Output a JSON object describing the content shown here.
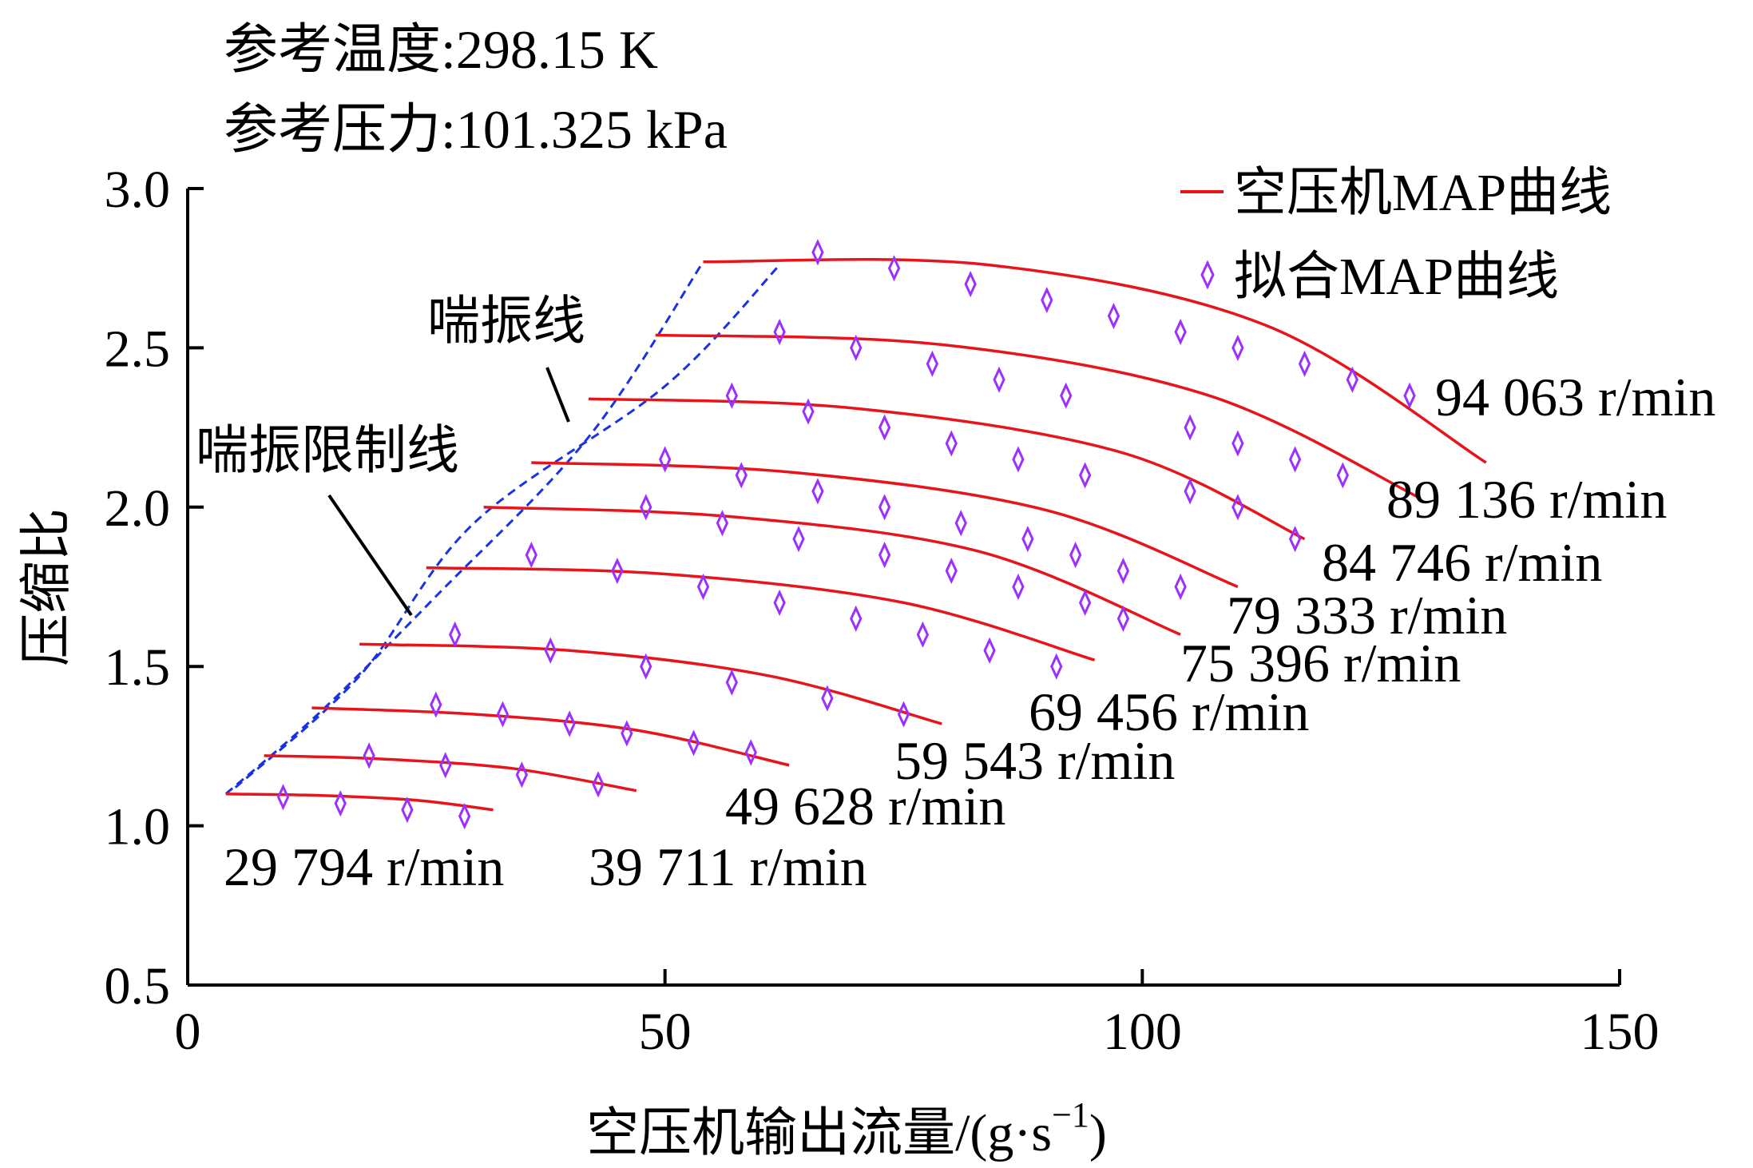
{
  "notes": {
    "ref_temp": "参考温度:298.15 K",
    "ref_pressure": "参考压力:101.325 kPa"
  },
  "legend": {
    "map_curve": "空压机MAP曲线",
    "fit_curve": "拟合MAP曲线"
  },
  "annotations": {
    "surge_line": "喘振线",
    "surge_limit_line": "喘振限制线"
  },
  "colors": {
    "map_curve": "#e8141b",
    "fit_marker": "#9b30ff",
    "surge": "#1a33e0",
    "axis": "#000000"
  },
  "chart_data": {
    "type": "line",
    "xlabel": "空压机输出流量/(g·s",
    "xlabel_sup": "−1",
    "xlabel_end": ")",
    "ylabel": "压缩比",
    "xlim": [
      0,
      150
    ],
    "ylim": [
      0.5,
      3.0
    ],
    "x_ticks": [
      0,
      50,
      100,
      150
    ],
    "x_tick_labels": [
      "0",
      "50",
      "100",
      "150"
    ],
    "y_ticks": [
      0.5,
      1.0,
      1.5,
      2.0,
      2.5,
      3.0
    ],
    "y_tick_labels": [
      "0.5",
      "1.0",
      "1.5",
      "2.0",
      "2.5",
      "3.0"
    ],
    "grid": false,
    "legend_position": "top-right",
    "series": [
      {
        "label": "29 794 r/min",
        "map_curve": [
          [
            4,
            1.1
          ],
          [
            14,
            1.095
          ],
          [
            24,
            1.08
          ],
          [
            32,
            1.05
          ]
        ],
        "fit_points": [
          [
            10,
            1.09
          ],
          [
            16,
            1.07
          ],
          [
            23,
            1.05
          ],
          [
            29,
            1.03
          ]
        ]
      },
      {
        "label": "39 711 r/min",
        "map_curve": [
          [
            8,
            1.22
          ],
          [
            20,
            1.21
          ],
          [
            34,
            1.18
          ],
          [
            47,
            1.11
          ]
        ],
        "fit_points": [
          [
            19,
            1.22
          ],
          [
            27,
            1.19
          ],
          [
            35,
            1.16
          ],
          [
            43,
            1.13
          ]
        ]
      },
      {
        "label": "49 628 r/min",
        "map_curve": [
          [
            13,
            1.37
          ],
          [
            30,
            1.35
          ],
          [
            47,
            1.3
          ],
          [
            63,
            1.19
          ]
        ],
        "fit_points": [
          [
            26,
            1.38
          ],
          [
            33,
            1.35
          ],
          [
            40,
            1.32
          ],
          [
            46,
            1.29
          ],
          [
            53,
            1.26
          ],
          [
            59,
            1.23
          ]
        ]
      },
      {
        "label": "59 543 r/min",
        "map_curve": [
          [
            18,
            1.57
          ],
          [
            40,
            1.55
          ],
          [
            61,
            1.47
          ],
          [
            79,
            1.32
          ]
        ],
        "fit_points": [
          [
            28,
            1.6
          ],
          [
            38,
            1.55
          ],
          [
            48,
            1.5
          ],
          [
            57,
            1.45
          ],
          [
            67,
            1.4
          ],
          [
            75,
            1.35
          ]
        ]
      },
      {
        "label": "69 456 r/min",
        "map_curve": [
          [
            25,
            1.81
          ],
          [
            50,
            1.79
          ],
          [
            75,
            1.7
          ],
          [
            95,
            1.52
          ]
        ],
        "fit_points": [
          [
            36,
            1.85
          ],
          [
            45,
            1.8
          ],
          [
            54,
            1.75
          ],
          [
            62,
            1.7
          ],
          [
            70,
            1.65
          ],
          [
            77,
            1.6
          ],
          [
            84,
            1.55
          ],
          [
            91,
            1.5
          ]
        ]
      },
      {
        "label": "75 396 r/min",
        "map_curve": [
          [
            31,
            2.0
          ],
          [
            57,
            1.97
          ],
          [
            83,
            1.86
          ],
          [
            104,
            1.6
          ]
        ],
        "fit_points": [
          [
            48,
            2.0
          ],
          [
            56,
            1.95
          ],
          [
            64,
            1.9
          ],
          [
            73,
            1.85
          ],
          [
            80,
            1.8
          ],
          [
            87,
            1.75
          ],
          [
            94,
            1.7
          ],
          [
            98,
            1.65
          ]
        ]
      },
      {
        "label": "79 333 r/min",
        "map_curve": [
          [
            36,
            2.14
          ],
          [
            63,
            2.11
          ],
          [
            90,
            1.99
          ],
          [
            110,
            1.75
          ]
        ],
        "fit_points": [
          [
            50,
            2.15
          ],
          [
            58,
            2.1
          ],
          [
            66,
            2.05
          ],
          [
            73,
            2.0
          ],
          [
            81,
            1.95
          ],
          [
            88,
            1.9
          ],
          [
            93,
            1.85
          ],
          [
            98,
            1.8
          ],
          [
            104,
            1.75
          ]
        ]
      },
      {
        "label": "84 746 r/min",
        "map_curve": [
          [
            42,
            2.34
          ],
          [
            70,
            2.31
          ],
          [
            98,
            2.17
          ],
          [
            117,
            1.9
          ]
        ],
        "fit_points": [
          [
            57,
            2.35
          ],
          [
            65,
            2.3
          ],
          [
            73,
            2.25
          ],
          [
            80,
            2.2
          ],
          [
            87,
            2.15
          ],
          [
            94,
            2.1
          ],
          [
            105,
            2.05
          ],
          [
            110,
            2.0
          ],
          [
            116,
            1.9
          ]
        ]
      },
      {
        "label": "89 136 r/min",
        "map_curve": [
          [
            49,
            2.54
          ],
          [
            79,
            2.51
          ],
          [
            107,
            2.35
          ],
          [
            129,
            2.03
          ]
        ],
        "fit_points": [
          [
            62,
            2.55
          ],
          [
            70,
            2.5
          ],
          [
            78,
            2.45
          ],
          [
            85,
            2.4
          ],
          [
            92,
            2.35
          ],
          [
            105,
            2.25
          ],
          [
            110,
            2.2
          ],
          [
            116,
            2.15
          ],
          [
            121,
            2.1
          ]
        ]
      },
      {
        "label": "94 063 r/min",
        "map_curve": [
          [
            54,
            2.77
          ],
          [
            84,
            2.76
          ],
          [
            113,
            2.57
          ],
          [
            136,
            2.14
          ]
        ],
        "fit_points": [
          [
            66,
            2.8
          ],
          [
            74,
            2.75
          ],
          [
            82,
            2.7
          ],
          [
            90,
            2.65
          ],
          [
            97,
            2.6
          ],
          [
            104,
            2.55
          ],
          [
            110,
            2.5
          ],
          [
            117,
            2.45
          ],
          [
            122,
            2.4
          ],
          [
            128,
            2.35
          ]
        ]
      }
    ],
    "surge_line": [
      [
        5,
        1.12
      ],
      [
        18,
        1.47
      ],
      [
        30,
        1.95
      ],
      [
        50,
        2.38
      ],
      [
        62,
        2.76
      ]
    ],
    "surge_limit_line": [
      [
        4,
        1.1
      ],
      [
        14,
        1.36
      ],
      [
        26,
        1.72
      ],
      [
        42,
        2.22
      ],
      [
        54,
        2.77
      ]
    ]
  }
}
